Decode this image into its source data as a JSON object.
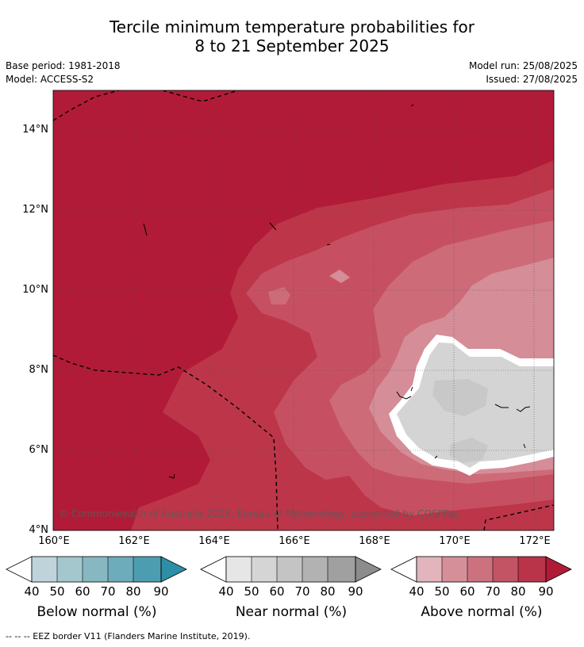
{
  "title": {
    "line1": "Tercile minimum temperature probabilities for",
    "line2": "8 to 21 September 2025"
  },
  "meta": {
    "base_period": "Base period: 1981-2018",
    "model": "Model: ACCESS-S2",
    "model_run": "Model run: 25/08/2025",
    "issued": "Issued: 27/08/2025"
  },
  "axes": {
    "lat_labels": [
      "14°N",
      "12°N",
      "10°N",
      "8°N",
      "6°N",
      "4°N"
    ],
    "lon_labels": [
      "160°E",
      "162°E",
      "164°E",
      "166°E",
      "168°E",
      "170°E",
      "172°E"
    ]
  },
  "copyright": "© Commonwealth of Australia 2025, Bureau of Meteorology, supported by COSPPac",
  "colorbars": [
    {
      "title": "Below normal (%)",
      "ticks": [
        "40",
        "50",
        "60",
        "70",
        "80",
        "90"
      ],
      "colors": [
        "#bfd4da",
        "#a3c7cd",
        "#87b8c2",
        "#6dacbb",
        "#4d9db0",
        "#2e8ea5"
      ]
    },
    {
      "title": "Near normal (%)",
      "ticks": [
        "40",
        "50",
        "60",
        "70",
        "80",
        "90"
      ],
      "colors": [
        "#e6e6e6",
        "#d5d5d5",
        "#c4c4c4",
        "#b2b2b2",
        "#a0a0a0",
        "#8c8c8c"
      ]
    },
    {
      "title": "Above normal (%)",
      "ticks": [
        "40",
        "50",
        "60",
        "70",
        "80",
        "90"
      ],
      "colors": [
        "#e2b5bd",
        "#d58f99",
        "#cc727e",
        "#c35463",
        "#b93449",
        "#b01c38"
      ]
    }
  ],
  "footer": "--  --  -- EEZ border V11 (Flanders Marine Institute, 2019).",
  "colors": {
    "above_90": "#b11b37",
    "above_80": "#bd3549",
    "above_70": "#c65061",
    "above_60": "#cd6b79",
    "above_50": "#d58d98",
    "near_40": "#d4d4d4",
    "near_50": "#c8c8c8"
  }
}
